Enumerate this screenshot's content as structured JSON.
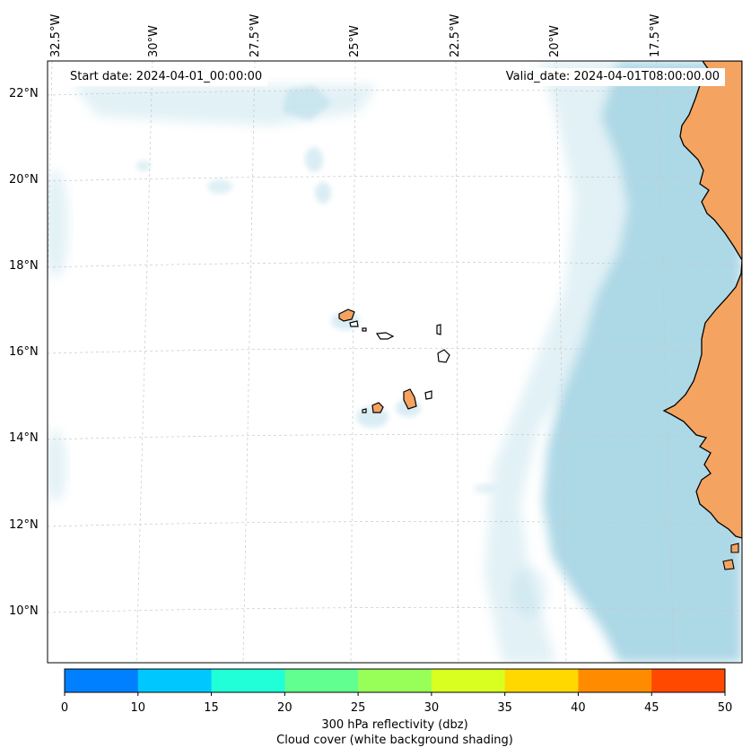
{
  "header": {
    "start_date": "Start date: 2024-04-01_00:00:00",
    "valid_date": "Valid_date: 2024-04-01T08:00:00.00"
  },
  "axes": {
    "longitude_labels": [
      "32.5°W",
      "30°W",
      "27.5°W",
      "25°W",
      "22.5°W",
      "20°W",
      "17.5°W"
    ],
    "latitude_labels": [
      "22°N",
      "20°N",
      "18°N",
      "16°N",
      "14°N",
      "12°N",
      "10°N"
    ]
  },
  "colorbar": {
    "ticks": [
      "0",
      "10",
      "15",
      "20",
      "25",
      "30",
      "35",
      "40",
      "45",
      "50"
    ],
    "colors": [
      "#0080ff",
      "#00c8ff",
      "#20ffd8",
      "#60ff90",
      "#98ff58",
      "#d8ff20",
      "#ffd800",
      "#ff8c00",
      "#ff4800"
    ],
    "title_line1": "300 hPa reflectivity (dbz)",
    "title_line2": "Cloud cover (white background shading)"
  },
  "map_colors": {
    "ocean": "#ffffff",
    "cloud": "#add8e6",
    "land": "#f4a460",
    "coast": "#000000"
  }
}
